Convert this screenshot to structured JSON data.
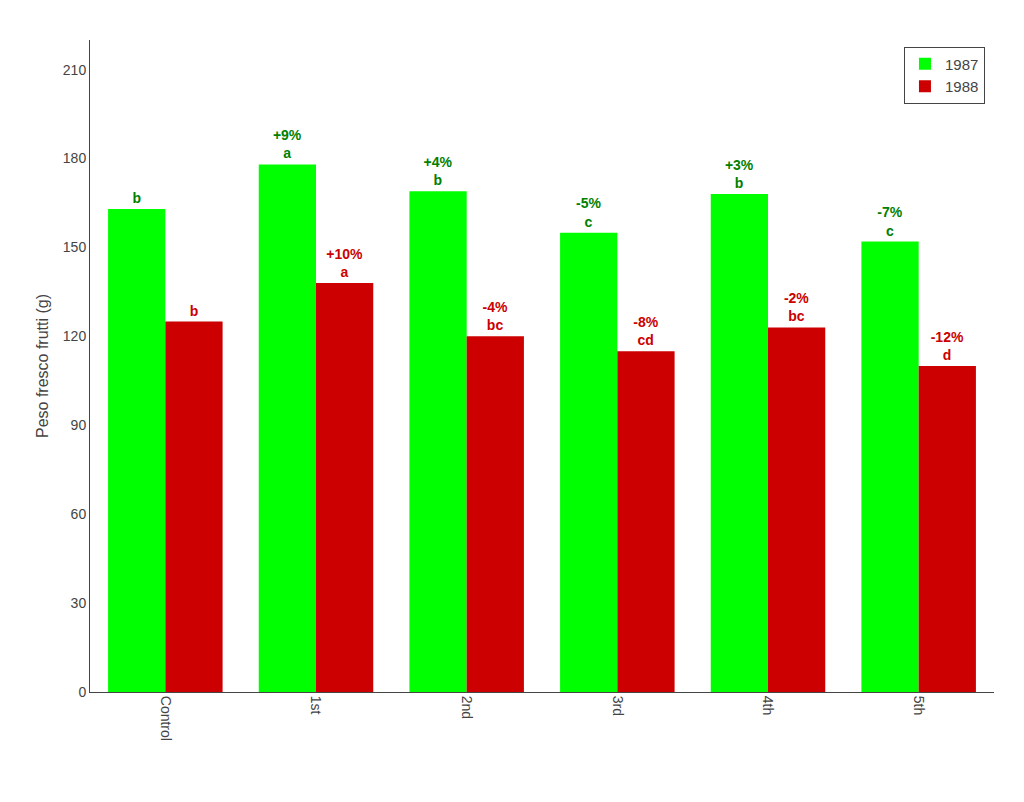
{
  "chart_data": {
    "type": "bar",
    "categories": [
      "Control",
      "1st",
      "2nd",
      "3rd",
      "4th",
      "5th"
    ],
    "series": [
      {
        "name": "1987",
        "color": "#00FF00",
        "values": [
          163,
          178,
          169,
          155,
          168,
          152
        ]
      },
      {
        "name": "1988",
        "color": "#CC0000",
        "values": [
          125,
          138,
          120,
          115,
          123,
          110
        ]
      }
    ],
    "ylabel": "Peso fresco frutti (g)",
    "ylim": [
      0,
      220
    ],
    "yticks": [
      0,
      30,
      60,
      90,
      120,
      150,
      180,
      210
    ],
    "grid": false,
    "legend": "upper right",
    "annotations": [
      {
        "x": "Control",
        "series": "1987",
        "text": "b",
        "color": "#008000"
      },
      {
        "x": "1st",
        "series": "1987",
        "text": "a",
        "color": "#008000"
      },
      {
        "x": "1st",
        "series": "1987",
        "text": "+9%",
        "color": "#008000"
      },
      {
        "x": "2nd",
        "series": "1987",
        "text": "b",
        "color": "#008000"
      },
      {
        "x": "2nd",
        "series": "1987",
        "text": "+4%",
        "color": "#008000"
      },
      {
        "x": "3rd",
        "series": "1987",
        "text": "c",
        "color": "#008000"
      },
      {
        "x": "3rd",
        "series": "1987",
        "text": "-5%",
        "color": "#008000"
      },
      {
        "x": "4th",
        "series": "1987",
        "text": "b",
        "color": "#008000"
      },
      {
        "x": "4th",
        "series": "1987",
        "text": "+3%",
        "color": "#008000"
      },
      {
        "x": "5th",
        "series": "1987",
        "text": "c",
        "color": "#008000"
      },
      {
        "x": "5th",
        "series": "1987",
        "text": "-7%",
        "color": "#008000"
      },
      {
        "x": "Control",
        "series": "1988",
        "text": "b",
        "color": "#CC0000"
      },
      {
        "x": "1st",
        "series": "1988",
        "text": "a",
        "color": "#CC0000"
      },
      {
        "x": "1st",
        "series": "1988",
        "text": "+10%",
        "color": "#CC0000"
      },
      {
        "x": "2nd",
        "series": "1988",
        "text": "bc",
        "color": "#CC0000"
      },
      {
        "x": "2nd",
        "series": "1988",
        "text": "-4%",
        "color": "#CC0000"
      },
      {
        "x": "3rd",
        "series": "1988",
        "text": "cd",
        "color": "#CC0000"
      },
      {
        "x": "3rd",
        "series": "1988",
        "text": "-8%",
        "color": "#CC0000"
      },
      {
        "x": "4th",
        "series": "1988",
        "text": "bc",
        "color": "#CC0000"
      },
      {
        "x": "4th",
        "series": "1988",
        "text": "-2%",
        "color": "#CC0000"
      },
      {
        "x": "5th",
        "series": "1988",
        "text": "d",
        "color": "#CC0000"
      },
      {
        "x": "5th",
        "series": "1988",
        "text": "-12%",
        "color": "#CC0000"
      }
    ]
  }
}
